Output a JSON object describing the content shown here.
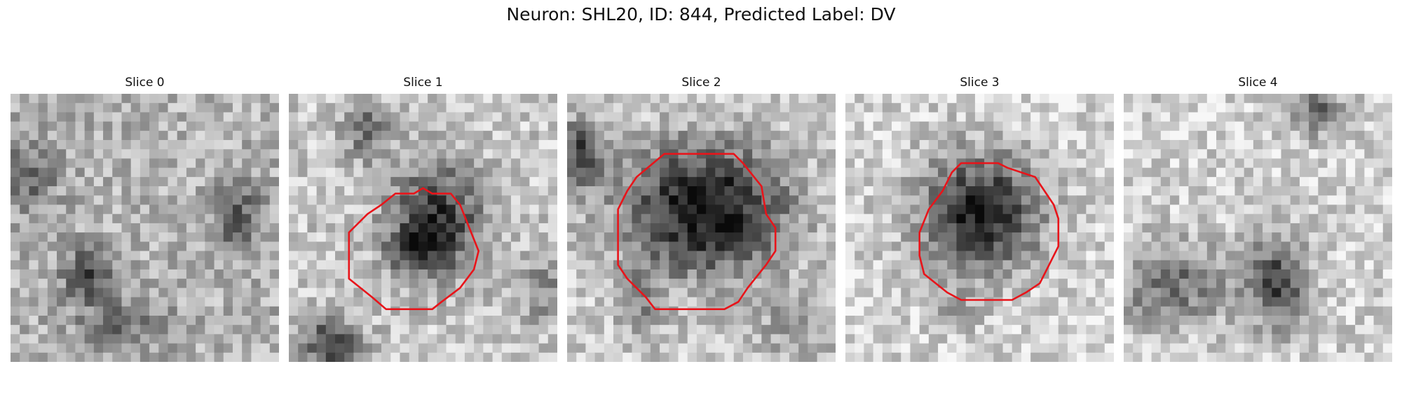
{
  "suptitle": "Neuron: SHL20, ID: 844, Predicted Label: DV",
  "contour_color": "#e8141a",
  "panels": [
    {
      "title": "Slice 0"
    },
    {
      "title": "Slice 1"
    },
    {
      "title": "Slice 2"
    },
    {
      "title": "Slice 3"
    },
    {
      "title": "Slice 4"
    }
  ]
}
